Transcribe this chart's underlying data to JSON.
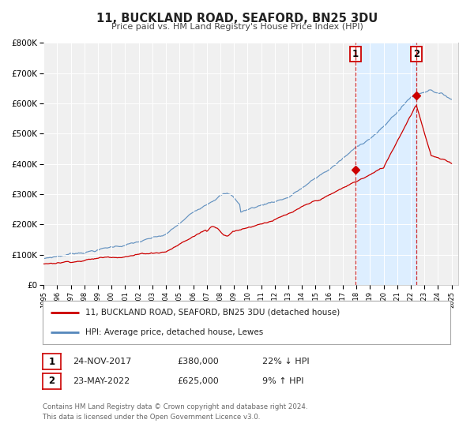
{
  "title": "11, BUCKLAND ROAD, SEAFORD, BN25 3DU",
  "subtitle": "Price paid vs. HM Land Registry's House Price Index (HPI)",
  "ylim": [
    0,
    800000
  ],
  "yticks": [
    0,
    100000,
    200000,
    300000,
    400000,
    500000,
    600000,
    700000,
    800000
  ],
  "ytick_labels": [
    "£0",
    "£100K",
    "£200K",
    "£300K",
    "£400K",
    "£500K",
    "£600K",
    "£700K",
    "£800K"
  ],
  "xlim_start": 1995.0,
  "xlim_end": 2025.5,
  "xticks": [
    1995,
    1996,
    1997,
    1998,
    1999,
    2000,
    2001,
    2002,
    2003,
    2004,
    2005,
    2006,
    2007,
    2008,
    2009,
    2010,
    2011,
    2012,
    2013,
    2014,
    2015,
    2016,
    2017,
    2018,
    2019,
    2020,
    2021,
    2022,
    2023,
    2024,
    2025
  ],
  "sale1_x": 2017.917,
  "sale1_y": 380000,
  "sale1_label": "1",
  "sale1_date": "24-NOV-2017",
  "sale1_price": "£380,000",
  "sale1_hpi": "22% ↓ HPI",
  "sale2_x": 2022.4,
  "sale2_y": 625000,
  "sale2_label": "2",
  "sale2_date": "23-MAY-2022",
  "sale2_price": "£625,000",
  "sale2_hpi": "9% ↑ HPI",
  "property_color": "#cc0000",
  "hpi_color": "#5588bb",
  "shade_color": "#ddeeff",
  "legend1_label": "11, BUCKLAND ROAD, SEAFORD, BN25 3DU (detached house)",
  "legend2_label": "HPI: Average price, detached house, Lewes",
  "footnote1": "Contains HM Land Registry data © Crown copyright and database right 2024.",
  "footnote2": "This data is licensed under the Open Government Licence v3.0.",
  "background_color": "#ffffff",
  "plot_bg_color": "#f0f0f0"
}
